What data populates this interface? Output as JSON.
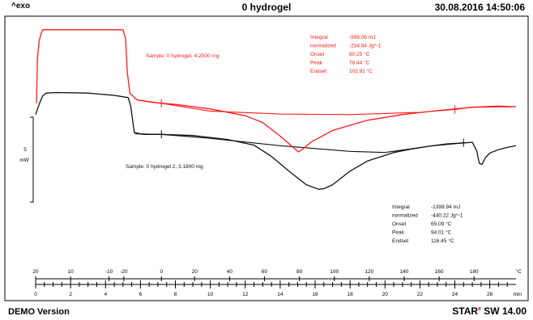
{
  "header": {
    "left": "^exo",
    "title": "0 hydrogel",
    "timestamp": "30.08.2016 14:50:06"
  },
  "footer": {
    "left": "DEMO Version",
    "right_brand": "STAR",
    "right_mark": "e",
    "right_rest": " SW 14.00"
  },
  "colors": {
    "red": "#ff1a1a",
    "black": "#111111",
    "frame": "#000000"
  },
  "chart_data": {
    "type": "line",
    "scale_bar": {
      "value": "5",
      "unit": "mW"
    },
    "x_time": {
      "ticks": [
        "0",
        "2",
        "4",
        "6",
        "8",
        "10",
        "12",
        "14",
        "16",
        "18",
        "20",
        "22",
        "24",
        "26"
      ],
      "unit": "min",
      "range": [
        0,
        27.5
      ]
    },
    "x_temp": {
      "ticks": [
        "20",
        "10",
        "-10",
        "-20",
        "0",
        "20",
        "40",
        "60",
        "80",
        "100",
        "120",
        "140",
        "160",
        "180"
      ],
      "unit": "°C"
    },
    "series": [
      {
        "name": "Sample: 0 hydrogel, 4.2500 mg",
        "color": "red",
        "points": [
          [
            0.05,
            6.3
          ],
          [
            0.1,
            10.2
          ],
          [
            0.2,
            11.8
          ],
          [
            0.3,
            12.4
          ],
          [
            0.4,
            12.8
          ],
          [
            5.0,
            12.8
          ],
          [
            5.15,
            12.0
          ],
          [
            5.25,
            9.0
          ],
          [
            5.4,
            7.2
          ],
          [
            5.8,
            6.6
          ],
          [
            6.6,
            6.4
          ],
          [
            7.2,
            6.3
          ],
          [
            8.0,
            6.2
          ],
          [
            10.0,
            5.8
          ],
          [
            12.0,
            5.2
          ],
          [
            13.0,
            4.6
          ],
          [
            14.0,
            3.4
          ],
          [
            14.6,
            2.6
          ],
          [
            15.05,
            2.0
          ],
          [
            15.2,
            2.15
          ],
          [
            15.8,
            2.9
          ],
          [
            17.0,
            3.9
          ],
          [
            19.0,
            4.8
          ],
          [
            21.0,
            5.3
          ],
          [
            23.0,
            5.65
          ],
          [
            24.0,
            5.8
          ],
          [
            25.0,
            5.95
          ],
          [
            26.5,
            6.05
          ],
          [
            27.5,
            6.0
          ]
        ],
        "baseline": [
          [
            5.8,
            6.6
          ],
          [
            7.2,
            6.3
          ],
          [
            10.0,
            5.6
          ],
          [
            14.0,
            5.35
          ],
          [
            18.0,
            5.3
          ],
          [
            22.0,
            5.5
          ],
          [
            24.0,
            5.75
          ],
          [
            25.0,
            5.95
          ],
          [
            27.5,
            6.0
          ]
        ],
        "annotation": {
          "rows": [
            [
              "Integral",
              "-998.06 mJ"
            ],
            [
              "  normalized",
              "-234.84 Jg^-1"
            ],
            [
              "Onset",
              "80.25 °C"
            ],
            [
              "Peak",
              "78.44 °C"
            ],
            [
              "Endset",
              "102.91 °C"
            ]
          ]
        }
      },
      {
        "name": "Sample: 0 hydrogel 2, 3.1800 mg",
        "color": "black",
        "points": [
          [
            0.0,
            5.3
          ],
          [
            0.2,
            6.2
          ],
          [
            0.4,
            6.95
          ],
          [
            0.6,
            7.2
          ],
          [
            1.2,
            7.25
          ],
          [
            3.0,
            7.2
          ],
          [
            4.5,
            7.0
          ],
          [
            5.3,
            6.8
          ],
          [
            5.45,
            6.0
          ],
          [
            5.65,
            3.7
          ],
          [
            6.2,
            3.55
          ],
          [
            7.2,
            3.55
          ],
          [
            9.0,
            3.45
          ],
          [
            11.0,
            3.1
          ],
          [
            12.5,
            2.6
          ],
          [
            13.5,
            1.6
          ],
          [
            14.5,
            0.3
          ],
          [
            15.5,
            -0.9
          ],
          [
            16.2,
            -1.3
          ],
          [
            16.5,
            -1.25
          ],
          [
            17.0,
            -0.9
          ],
          [
            18.0,
            0.3
          ],
          [
            19.0,
            1.2
          ],
          [
            20.5,
            1.95
          ],
          [
            21.5,
            2.25
          ],
          [
            22.5,
            2.5
          ],
          [
            23.5,
            2.7
          ],
          [
            24.5,
            2.8
          ],
          [
            25.0,
            2.85
          ],
          [
            25.25,
            2.1
          ],
          [
            25.4,
            1.0
          ],
          [
            25.55,
            0.9
          ],
          [
            25.75,
            1.5
          ],
          [
            26.0,
            1.9
          ],
          [
            26.5,
            2.2
          ],
          [
            27.0,
            2.4
          ],
          [
            27.5,
            2.55
          ]
        ],
        "baseline": [
          [
            5.7,
            3.6
          ],
          [
            7.2,
            3.55
          ],
          [
            10.0,
            3.2
          ],
          [
            14.0,
            2.55
          ],
          [
            18.0,
            2.05
          ],
          [
            20.0,
            1.95
          ],
          [
            22.5,
            2.5
          ],
          [
            24.5,
            2.8
          ]
        ],
        "annotation": {
          "rows": [
            [
              "Integral",
              "-1399.94 mJ"
            ],
            [
              "  normalized",
              "-440.22 Jg^-1"
            ],
            [
              "Onset",
              "65.09 °C"
            ],
            [
              "Peak",
              "94.01 °C"
            ],
            [
              "Endset",
              "116.45 °C"
            ]
          ]
        }
      }
    ]
  }
}
